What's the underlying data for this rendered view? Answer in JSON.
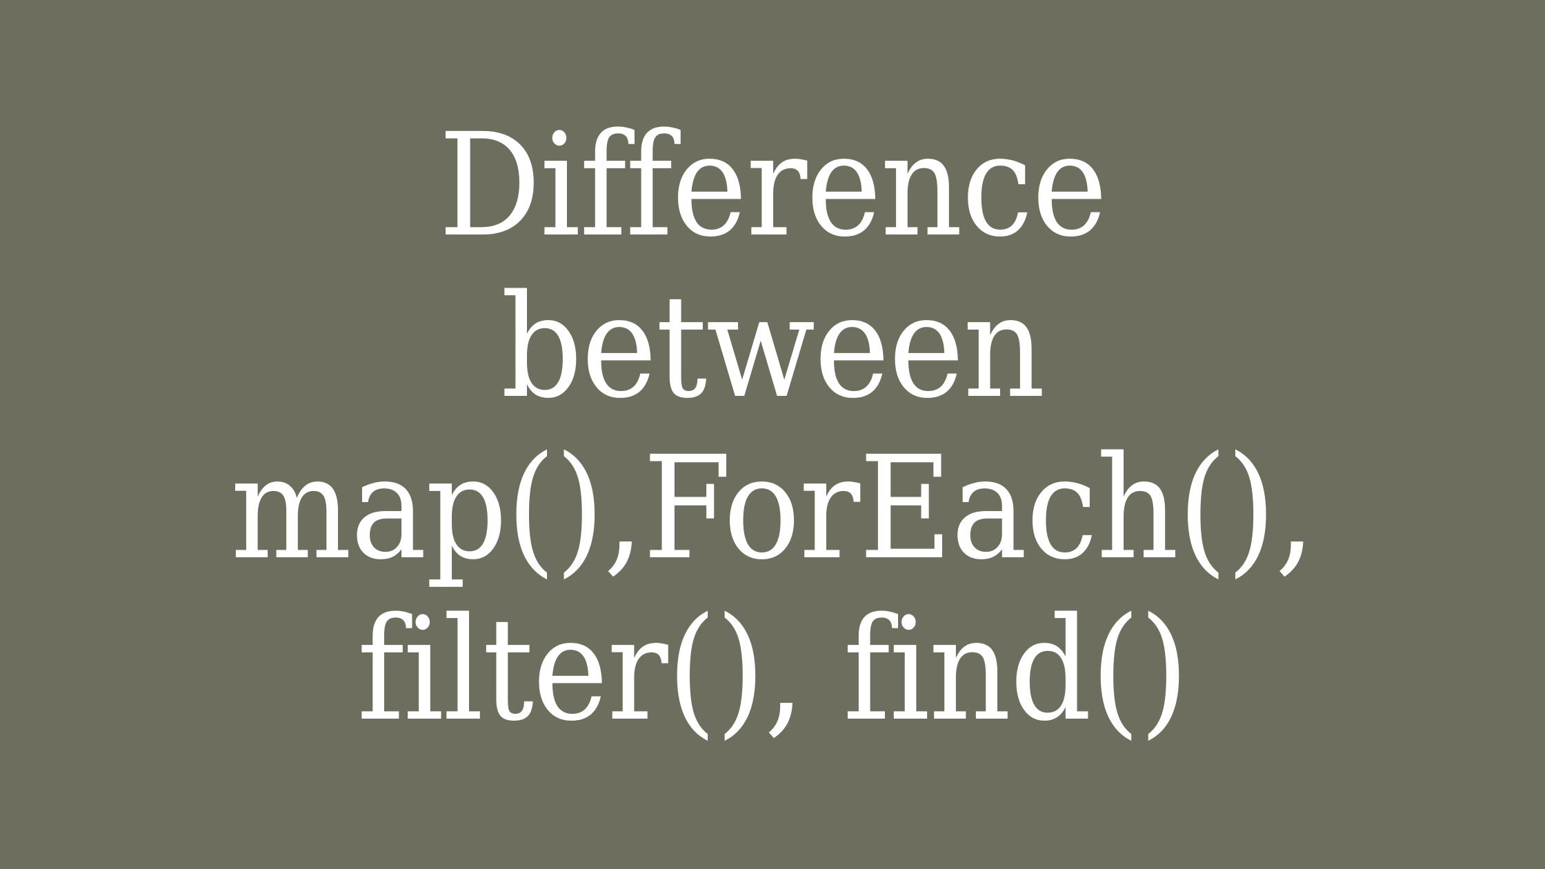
{
  "colors": {
    "background": "#6e6e5e",
    "text": "#ffffff"
  },
  "title": {
    "lines": [
      "Difference",
      "between",
      "map(),ForEach(),",
      "filter(), find()"
    ]
  }
}
